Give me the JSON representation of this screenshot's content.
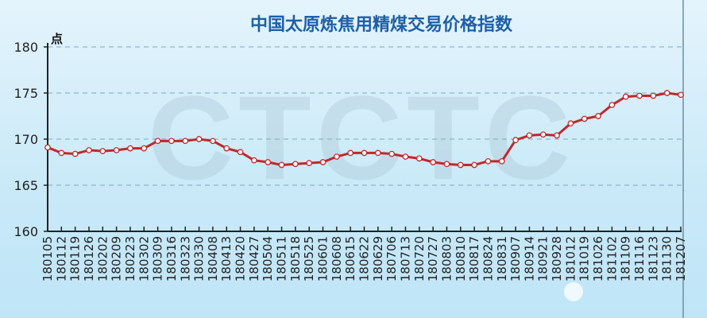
{
  "chart_data": {
    "type": "line",
    "title": "中国太原炼焦用精煤交易价格指数",
    "ylabel": "点",
    "xlabel": "",
    "ylim": [
      160,
      180
    ],
    "yticks": [
      160,
      165,
      170,
      175,
      180
    ],
    "grid": "horizontal-dashed",
    "watermark": "CTCTC",
    "colors": {
      "line": "#c0282b",
      "marker_fill": "#ffffff",
      "title": "#1f5fa8",
      "grid": "#7fa7c0"
    },
    "categories": [
      "180105",
      "180112",
      "180119",
      "180126",
      "180202",
      "180209",
      "180223",
      "180302",
      "180309",
      "180316",
      "180323",
      "180330",
      "180408",
      "180413",
      "180420",
      "180427",
      "180504",
      "180511",
      "180518",
      "180525",
      "180601",
      "180608",
      "180615",
      "180622",
      "180629",
      "180706",
      "180713",
      "180720",
      "180727",
      "180803",
      "180810",
      "180817",
      "180824",
      "180831",
      "180907",
      "180914",
      "180921",
      "180928",
      "181012",
      "181019",
      "181026",
      "181102",
      "181109",
      "181116",
      "181123",
      "181130",
      "181207"
    ],
    "values": [
      169.1,
      168.5,
      168.4,
      168.8,
      168.7,
      168.8,
      169.0,
      169.0,
      169.8,
      169.8,
      169.8,
      170.0,
      169.8,
      169.0,
      168.6,
      167.7,
      167.5,
      167.2,
      167.3,
      167.4,
      167.5,
      168.1,
      168.5,
      168.5,
      168.5,
      168.4,
      168.1,
      167.9,
      167.5,
      167.3,
      167.2,
      167.2,
      167.6,
      167.6,
      169.9,
      170.4,
      170.5,
      170.4,
      171.7,
      172.2,
      172.5,
      173.7,
      174.6,
      174.7,
      174.7,
      175.0,
      174.8
    ]
  }
}
